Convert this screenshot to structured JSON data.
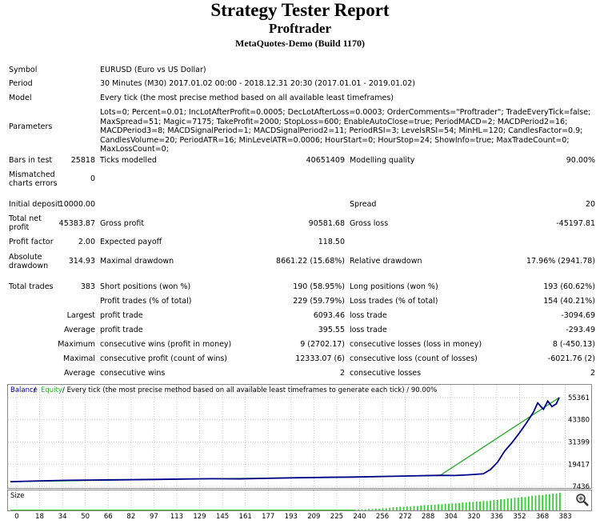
{
  "report": {
    "title": "Strategy Tester Report",
    "subtitle": "Proftrader",
    "build": "MetaQuotes-Demo (Build 1170)"
  },
  "info": {
    "symbol_label": "Symbol",
    "symbol": "EURUSD (Euro vs US Dollar)",
    "period_label": "Period",
    "period": "30 Minutes (M30) 2017.01.02 00:00 - 2018.12.31 20:30 (2017.01.01 - 2019.01.02)",
    "model_label": "Model",
    "model": "Every tick (the most precise method based on all available least timeframes)",
    "params_label": "Parameters",
    "params": "Lots=0; Percent=0.01; IncLotAfterProfit=0.0005; DecLotAfterLoss=0.0003; OrderComments=\"Proftrader\"; TradeEveryTick=false; MaxSpread=51; Magic=7175; TakeProfit=2000; StopLoss=600; EnableAutoClose=true; PeriodMACD=2; MACDPeriod2=16; MACDPeriod3=8; MACDSignalPeriod=1; MACDSignalPeriod2=11; PeriodRSI=3; LevelsRSI=54; MinHL=120; CandlesFactor=0.9; CandlesVolume=20; PeriodATR=16; MinLevelATR=0.0006; HourStart=0; HourStop=24; ShowInfo=true; MaxTradeCount=0; MaxLossCount=0;"
  },
  "stats": {
    "bars_label": "Bars in test",
    "bars": "25818",
    "ticks_label": "Ticks modelled",
    "ticks": "40651409",
    "quality_label": "Modelling quality",
    "quality": "90.00%",
    "mismatch_label_1": "Mismatched",
    "mismatch_label_2": "charts errors",
    "mismatch": "0",
    "deposit_label": "Initial deposit",
    "deposit": "10000.00",
    "spread_label": "Spread",
    "spread": "20",
    "net_label_1": "Total net",
    "net_label_2": "profit",
    "net": "45383.87",
    "gross_profit_label": "Gross profit",
    "gross_profit": "90581.68",
    "gross_loss_label": "Gross loss",
    "gross_loss": "-45197.81",
    "pf_label": "Profit factor",
    "pf": "2.00",
    "payoff_label": "Expected payoff",
    "payoff": "118.50",
    "abs_dd_label_1": "Absolute",
    "abs_dd_label_2": "drawdown",
    "abs_dd": "314.93",
    "max_dd_label": "Maximal drawdown",
    "max_dd": "8661.22 (15.68%)",
    "rel_dd_label": "Relative drawdown",
    "rel_dd": "17.96% (2941.78)",
    "trades_label": "Total trades",
    "trades": "383",
    "short_label": "Short positions (won %)",
    "short": "190 (58.95%)",
    "long_label": "Long positions (won %)",
    "long": "193 (60.62%)",
    "profit_trades_label": "Profit trades (% of total)",
    "profit_trades": "229 (59.79%)",
    "loss_trades_label": "Loss trades (% of total)",
    "loss_trades": "154 (40.21%)",
    "largest_label": "Largest",
    "largest_pt_label": "profit trade",
    "largest_pt": "6093.46",
    "largest_lt_label": "loss trade",
    "largest_lt": "-3094.69",
    "average_label": "Average",
    "average_pt_label": "profit trade",
    "average_pt": "395.55",
    "average_lt_label": "loss trade",
    "average_lt": "-293.49",
    "maximum_label": "Maximum",
    "max_cw_label": "consecutive wins (profit in money)",
    "max_cw": "9 (2702.17)",
    "max_cl_label": "consecutive losses (loss in money)",
    "max_cl": "8 (-450.13)",
    "maximal_label": "Maximal",
    "mx_cp_label": "consecutive profit (count of wins)",
    "mx_cp": "12333.07 (6)",
    "mx_cl_label": "consecutive loss (count of losses)",
    "mx_cl": "-6021.76 (2)",
    "average2_label": "Average",
    "avg_cw_label": "consecutive wins",
    "avg_cw": "2",
    "avg_cl_label": "consecutive losses",
    "avg_cl": "2"
  },
  "chart_header": {
    "balance": "Balance",
    "sep": "/",
    "equity": "Equity",
    "rest": "/ Every tick (the most precise method based on all available least timeframes to generate each tick) / 90.00%"
  },
  "size_label": "Size",
  "colors": {
    "balance": "#00008b",
    "equity": "#2ea82e",
    "size": "#32cd32",
    "grid": "#c8c8c8"
  },
  "zoom_icon": "magnifier-icon",
  "chart_data": {
    "type": "line",
    "y_ticks": [
      "55361",
      "43380",
      "31399",
      "19417",
      "7436"
    ],
    "ylim": [
      7436,
      55361
    ],
    "x_ticks": [
      "0",
      "18",
      "34",
      "50",
      "66",
      "82",
      "97",
      "113",
      "129",
      "145",
      "161",
      "177",
      "193",
      "209",
      "225",
      "240",
      "256",
      "272",
      "288",
      "304",
      "320",
      "336",
      "352",
      "368",
      "383"
    ],
    "xlim": [
      0,
      383
    ],
    "series": [
      {
        "name": "Balance",
        "x": [
          0,
          10,
          20,
          40,
          60,
          80,
          100,
          120,
          140,
          160,
          180,
          200,
          220,
          240,
          260,
          280,
          300,
          310,
          320,
          330,
          335,
          340,
          345,
          350,
          355,
          360,
          365,
          368,
          372,
          375,
          378,
          381,
          383
        ],
        "values": [
          10000,
          10200,
          10400,
          10700,
          10900,
          11000,
          11200,
          11400,
          11600,
          11500,
          11800,
          12100,
          12300,
          12500,
          12800,
          13100,
          13400,
          13300,
          13700,
          14200,
          16500,
          20500,
          26500,
          31000,
          36000,
          41500,
          47500,
          52500,
          49000,
          53500,
          50500,
          52000,
          55361
        ]
      },
      {
        "name": "Equity",
        "x": [
          0,
          100,
          200,
          300,
          383
        ],
        "values": [
          10000,
          11200,
          12100,
          13400,
          55361
        ]
      }
    ],
    "size_series": {
      "x_start": 0,
      "x_end": 383,
      "values_relative": [
        0.05,
        0.06,
        0.08,
        0.1,
        0.12,
        0.15,
        0.18,
        0.2,
        0.22,
        0.25,
        0.28,
        0.3,
        0.32,
        0.35,
        0.38,
        0.4,
        0.42,
        0.45,
        0.48,
        0.5,
        0.53,
        0.56,
        0.6,
        0.64,
        0.68,
        0.72,
        0.76,
        0.8,
        0.84,
        0.88,
        0.92,
        0.96,
        1.0
      ]
    }
  }
}
